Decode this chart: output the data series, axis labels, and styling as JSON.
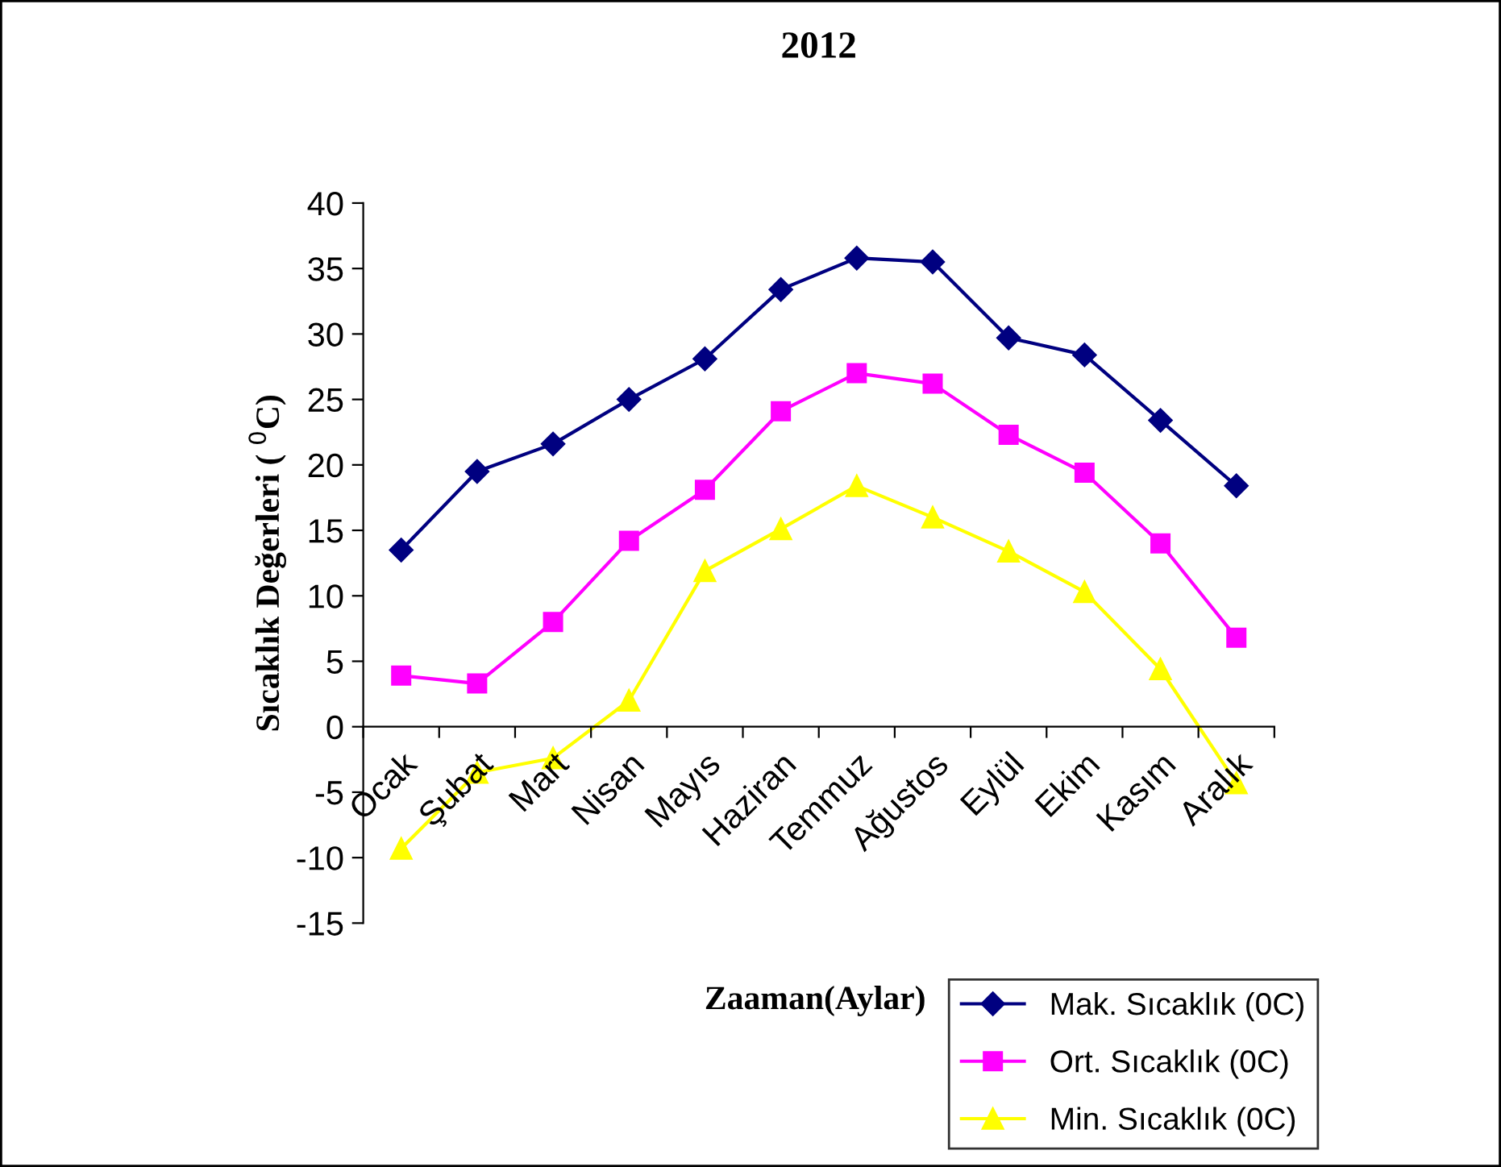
{
  "chart_data": {
    "type": "line",
    "title": "2012",
    "xlabel": "Zaaman(Aylar)",
    "ylabel": "Sıcaklık Değerleri ( $^{0}$C)",
    "categories": [
      "Ocak",
      "Şubat",
      "Mart",
      "Nisan",
      "Mayıs",
      "Haziran",
      "Temmuz",
      "Ağustos",
      "Eylül",
      "Ekim",
      "Kasım",
      "Aralık"
    ],
    "series": [
      {
        "name": "Mak. Sıcaklık (0C)",
        "color": "#000080",
        "marker": "diamond",
        "values": [
          13.5,
          19.5,
          21.6,
          25,
          28.1,
          33.4,
          35.8,
          35.5,
          29.7,
          28.4,
          23.4,
          18.4
        ]
      },
      {
        "name": "Ort. Sıcaklık (0C)",
        "color": "#ff00ff",
        "marker": "square",
        "values": [
          3.9,
          3.3,
          8,
          14.2,
          18.1,
          24.1,
          27,
          26.2,
          22.3,
          19.4,
          14,
          6.8
        ]
      },
      {
        "name": "Min. Sıcaklık (0C)",
        "color": "#ffff00",
        "marker": "triangle",
        "values": [
          -9.3,
          -3.5,
          -2.4,
          2,
          11.9,
          15.1,
          18.4,
          16,
          13.4,
          10.3,
          4.4,
          -4.3
        ]
      }
    ],
    "ylim": [
      -15,
      40
    ],
    "yticks": [
      -15,
      -10,
      -5,
      0,
      5,
      10,
      15,
      20,
      25,
      30,
      35,
      40
    ],
    "grid": false,
    "legend": "bottom right"
  }
}
